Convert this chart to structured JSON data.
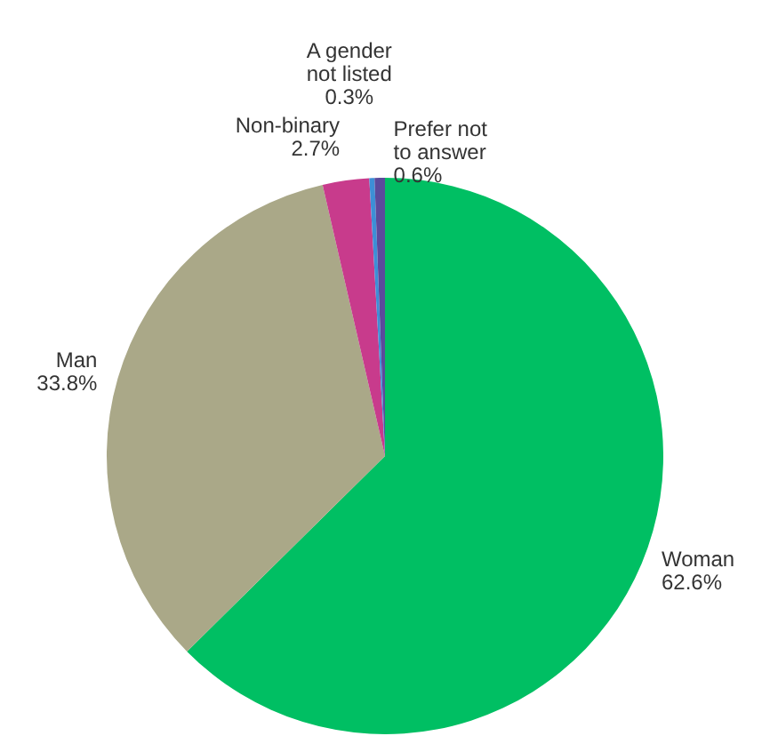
{
  "chart_data": {
    "type": "pie",
    "categories": [
      "Woman",
      "Man",
      "Non-binary",
      "A gender not listed",
      "Prefer not to answer"
    ],
    "values": [
      62.6,
      33.8,
      2.7,
      0.3,
      0.6
    ],
    "colors": [
      "#00bf63",
      "#aaa888",
      "#c83b8c",
      "#3d8fd6",
      "#5b4a9c"
    ],
    "value_labels": [
      "62.6%",
      "33.8%",
      "2.7%",
      "0.3%",
      "0.6%"
    ],
    "legend": false
  }
}
